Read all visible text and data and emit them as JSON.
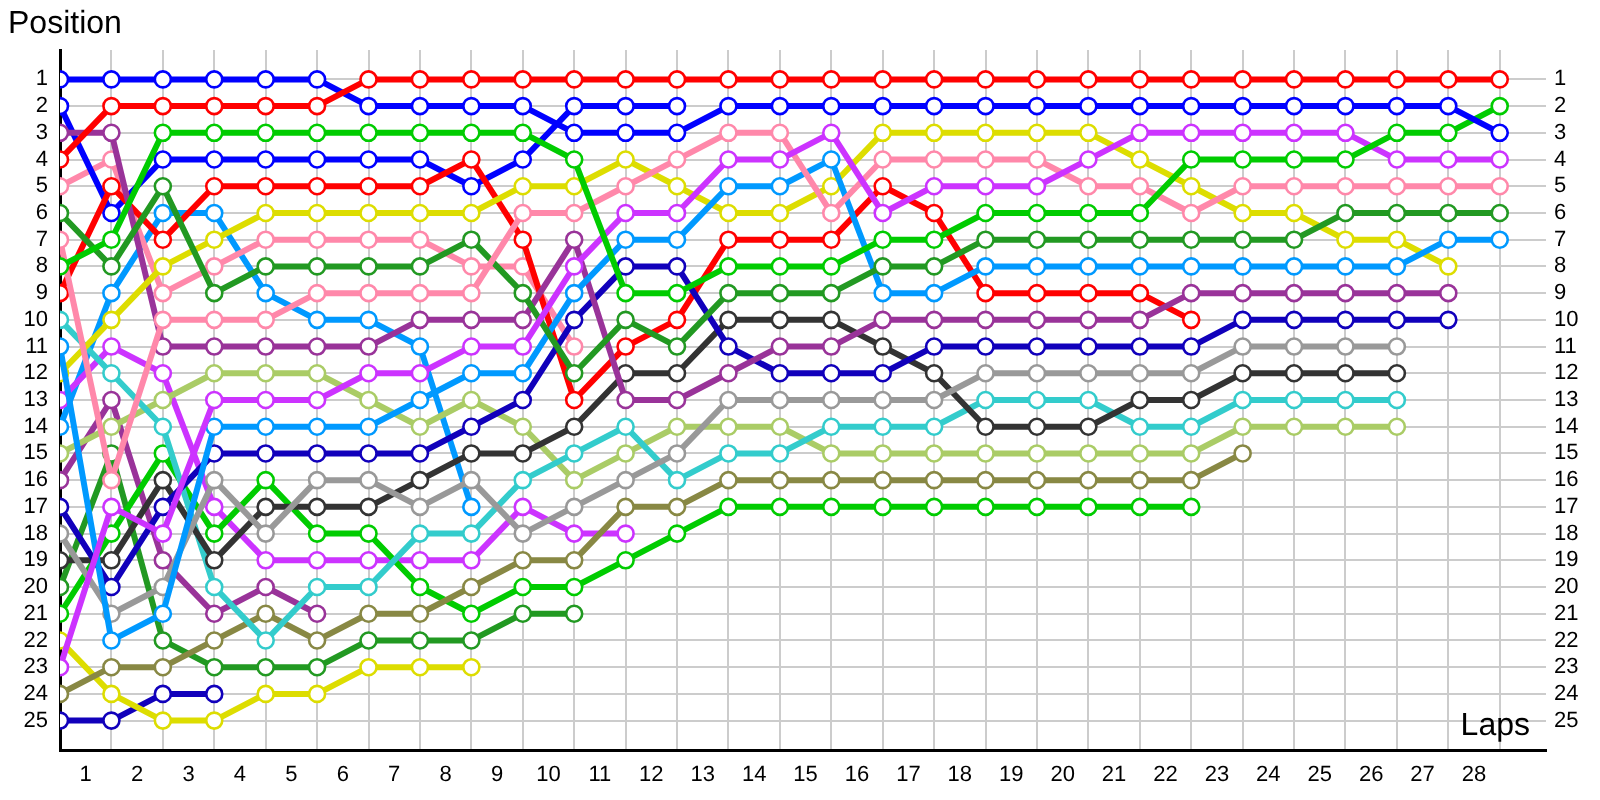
{
  "chart_data": {
    "type": "line",
    "xlabel": "Laps",
    "ylabel": "Position",
    "marker": "circle",
    "grid": true,
    "legend": false,
    "x": [
      0,
      1,
      2,
      3,
      4,
      5,
      6,
      7,
      8,
      9,
      10,
      11,
      12,
      13,
      14,
      15,
      16,
      17,
      18,
      19,
      20,
      21,
      22,
      23,
      24,
      25,
      26,
      27,
      28
    ],
    "xlim": [
      0,
      28.9
    ],
    "xticks": [
      {
        "value": 0,
        "label": null
      },
      {
        "value": 0.5,
        "label": "1"
      },
      {
        "value": 1,
        "label": null
      },
      {
        "value": 1.5,
        "label": "2"
      },
      {
        "value": 2,
        "label": null
      },
      {
        "value": 2.5,
        "label": "3"
      },
      {
        "value": 3,
        "label": null
      },
      {
        "value": 3.5,
        "label": "4"
      },
      {
        "value": 4,
        "label": null
      },
      {
        "value": 4.5,
        "label": "5"
      },
      {
        "value": 5,
        "label": null
      },
      {
        "value": 5.5,
        "label": "6"
      },
      {
        "value": 6,
        "label": null
      },
      {
        "value": 6.5,
        "label": "7"
      },
      {
        "value": 7,
        "label": null
      },
      {
        "value": 7.5,
        "label": "8"
      },
      {
        "value": 8,
        "label": null
      },
      {
        "value": 8.5,
        "label": "9"
      },
      {
        "value": 9,
        "label": null
      },
      {
        "value": 9.5,
        "label": "10"
      },
      {
        "value": 10,
        "label": null
      },
      {
        "value": 10.5,
        "label": "11"
      },
      {
        "value": 11,
        "label": null
      },
      {
        "value": 11.5,
        "label": "12"
      },
      {
        "value": 12,
        "label": null
      },
      {
        "value": 12.5,
        "label": "13"
      },
      {
        "value": 13,
        "label": null
      },
      {
        "value": 13.5,
        "label": "14"
      },
      {
        "value": 14,
        "label": null
      },
      {
        "value": 14.5,
        "label": "15"
      },
      {
        "value": 15,
        "label": null
      },
      {
        "value": 15.5,
        "label": "16"
      },
      {
        "value": 16,
        "label": null
      },
      {
        "value": 16.5,
        "label": "17"
      },
      {
        "value": 17,
        "label": null
      },
      {
        "value": 17.5,
        "label": "18"
      },
      {
        "value": 18,
        "label": null
      },
      {
        "value": 18.5,
        "label": "19"
      },
      {
        "value": 19,
        "label": null
      },
      {
        "value": 19.5,
        "label": "20"
      },
      {
        "value": 20,
        "label": null
      },
      {
        "value": 20.5,
        "label": "21"
      },
      {
        "value": 21,
        "label": null
      },
      {
        "value": 21.5,
        "label": "22"
      },
      {
        "value": 22,
        "label": null
      },
      {
        "value": 22.5,
        "label": "23"
      },
      {
        "value": 23,
        "label": null
      },
      {
        "value": 23.5,
        "label": "24"
      },
      {
        "value": 24,
        "label": null
      },
      {
        "value": 24.5,
        "label": "25"
      },
      {
        "value": 25,
        "label": null
      },
      {
        "value": 25.5,
        "label": "26"
      },
      {
        "value": 26,
        "label": null
      },
      {
        "value": 26.5,
        "label": "27"
      },
      {
        "value": 27,
        "label": null
      },
      {
        "value": 27.5,
        "label": "28"
      },
      {
        "value": 28,
        "label": null
      }
    ],
    "ylim": [
      26.1,
      -0.1
    ],
    "yticks": [
      1,
      2,
      3,
      4,
      5,
      6,
      7,
      8,
      9,
      10,
      11,
      12,
      13,
      14,
      15,
      16,
      17,
      18,
      19,
      20,
      21,
      22,
      23,
      24,
      25
    ],
    "y2lim": [
      26.1,
      -0.1
    ],
    "y2ticks": [
      1,
      2,
      3,
      4,
      5,
      6,
      7,
      8,
      9,
      10,
      11,
      12,
      13,
      14,
      15,
      16,
      17,
      18,
      19,
      20,
      21,
      22,
      23,
      24,
      25
    ],
    "series": [
      {
        "color": "#ff0000",
        "values": [
          4,
          2,
          2,
          2,
          2,
          2,
          1,
          1,
          1,
          1,
          1,
          1,
          1,
          1,
          1,
          1,
          1,
          1,
          1,
          1,
          1,
          1,
          1,
          1,
          1,
          1,
          1,
          1,
          1
        ]
      },
      {
        "color": "#0000ff",
        "values": [
          1,
          1,
          1,
          1,
          1,
          1,
          2,
          2,
          2,
          2,
          3,
          3,
          3,
          2,
          2,
          2,
          2,
          2,
          2,
          2,
          2,
          2,
          2,
          2,
          2,
          2,
          2,
          2,
          3
        ]
      },
      {
        "color": "#00cc00",
        "values": [
          8,
          7,
          3,
          3,
          3,
          3,
          3,
          3,
          3,
          3,
          4,
          9,
          9,
          8,
          8,
          8,
          7,
          7,
          6,
          6,
          6,
          6,
          4,
          4,
          4,
          4,
          3,
          3,
          2
        ]
      },
      {
        "color": "#cc33ff",
        "values": [
          23,
          17,
          18,
          13,
          13,
          13,
          12,
          12,
          11,
          11,
          8,
          6,
          6,
          4,
          4,
          3,
          6,
          5,
          5,
          5,
          4,
          3,
          3,
          3,
          3,
          3,
          4,
          4,
          4
        ]
      },
      {
        "color": "#ff88aa",
        "values": [
          7,
          16,
          10,
          10,
          10,
          9,
          9,
          9,
          9,
          6,
          6,
          5,
          4,
          3,
          3,
          6,
          4,
          4,
          4,
          4,
          5,
          5,
          6,
          5,
          5,
          5,
          5,
          5,
          5
        ]
      },
      {
        "color": "#229922",
        "values": [
          6,
          8,
          5,
          9,
          8,
          8,
          8,
          8,
          7,
          9,
          12,
          10,
          11,
          9,
          9,
          9,
          8,
          8,
          7,
          7,
          7,
          7,
          7,
          7,
          7,
          6,
          6,
          6,
          6
        ]
      },
      {
        "color": "#0099ff",
        "values": [
          11,
          22,
          21,
          14,
          14,
          14,
          14,
          13,
          12,
          12,
          9,
          7,
          7,
          5,
          5,
          4,
          9,
          9,
          8,
          8,
          8,
          8,
          8,
          8,
          8,
          8,
          8,
          7,
          7
        ]
      },
      {
        "color": "#dddd00",
        "values": [
          12,
          10,
          8,
          7,
          6,
          6,
          6,
          6,
          6,
          5,
          5,
          4,
          5,
          6,
          6,
          5,
          3,
          3,
          3,
          3,
          3,
          4,
          5,
          6,
          6,
          7,
          7,
          8,
          null
        ]
      },
      {
        "color": "#993399",
        "values": [
          3,
          3,
          11,
          11,
          11,
          11,
          11,
          10,
          10,
          10,
          7,
          13,
          13,
          12,
          11,
          11,
          10,
          10,
          10,
          10,
          10,
          10,
          9,
          9,
          9,
          9,
          9,
          9,
          null
        ]
      },
      {
        "color": "#1100bb",
        "values": [
          17,
          20,
          17,
          15,
          15,
          15,
          15,
          15,
          14,
          13,
          10,
          8,
          8,
          11,
          12,
          12,
          12,
          11,
          11,
          11,
          11,
          11,
          11,
          10,
          10,
          10,
          10,
          10,
          null
        ]
      },
      {
        "color": "#999999",
        "values": [
          18,
          21,
          20,
          16,
          18,
          16,
          16,
          17,
          16,
          18,
          17,
          16,
          15,
          13,
          13,
          13,
          13,
          13,
          12,
          12,
          12,
          12,
          12,
          11,
          11,
          11,
          11,
          null,
          null
        ]
      },
      {
        "color": "#333333",
        "values": [
          19,
          19,
          16,
          19,
          17,
          17,
          17,
          16,
          15,
          15,
          14,
          12,
          12,
          10,
          10,
          10,
          11,
          12,
          14,
          14,
          14,
          13,
          13,
          12,
          12,
          12,
          12,
          null,
          null
        ]
      },
      {
        "color": "#33cccc",
        "values": [
          10,
          12,
          14,
          20,
          22,
          20,
          20,
          18,
          18,
          16,
          15,
          14,
          16,
          15,
          15,
          14,
          14,
          14,
          13,
          13,
          13,
          14,
          14,
          13,
          13,
          13,
          13,
          null,
          null
        ]
      },
      {
        "color": "#aacc66",
        "values": [
          15,
          14,
          13,
          12,
          12,
          12,
          13,
          14,
          13,
          14,
          16,
          15,
          14,
          14,
          14,
          15,
          15,
          15,
          15,
          15,
          15,
          15,
          15,
          14,
          14,
          14,
          14,
          null,
          null
        ]
      },
      {
        "color": "#888844",
        "values": [
          24,
          23,
          23,
          22,
          21,
          22,
          21,
          21,
          20,
          19,
          19,
          17,
          17,
          16,
          16,
          16,
          16,
          16,
          16,
          16,
          16,
          16,
          16,
          15,
          null,
          null,
          null,
          null,
          null
        ]
      },
      {
        "color": "#00cc00",
        "values": [
          21,
          18,
          15,
          18,
          16,
          18,
          18,
          20,
          21,
          20,
          20,
          19,
          18,
          17,
          17,
          17,
          17,
          17,
          17,
          17,
          17,
          17,
          17,
          null,
          null,
          null,
          null,
          null,
          null
        ]
      },
      {
        "color": "#ff0000",
        "values": [
          9,
          5,
          7,
          5,
          5,
          5,
          5,
          5,
          4,
          7,
          13,
          11,
          10,
          7,
          7,
          7,
          5,
          6,
          9,
          9,
          9,
          9,
          10,
          null,
          null,
          null,
          null,
          null,
          null
        ]
      },
      {
        "color": "#0000ff",
        "values": [
          2,
          6,
          4,
          4,
          4,
          4,
          4,
          4,
          5,
          4,
          2,
          2,
          2,
          null,
          null,
          null,
          null,
          null,
          null,
          null,
          null,
          null,
          null,
          null,
          null,
          null,
          null,
          null,
          null
        ]
      },
      {
        "color": "#cc33ff",
        "values": [
          13,
          11,
          12,
          17,
          19,
          19,
          19,
          19,
          19,
          17,
          18,
          18,
          null,
          null,
          null,
          null,
          null,
          null,
          null,
          null,
          null,
          null,
          null,
          null,
          null,
          null,
          null,
          null,
          null
        ]
      },
      {
        "color": "#ff88aa",
        "values": [
          5,
          4,
          9,
          8,
          7,
          7,
          7,
          7,
          8,
          8,
          11,
          null,
          null,
          null,
          null,
          null,
          null,
          null,
          null,
          null,
          null,
          null,
          null,
          null,
          null,
          null,
          null,
          null,
          null
        ]
      },
      {
        "color": "#229922",
        "values": [
          20,
          15,
          22,
          23,
          23,
          23,
          22,
          22,
          22,
          21,
          21,
          null,
          null,
          null,
          null,
          null,
          null,
          null,
          null,
          null,
          null,
          null,
          null,
          null,
          null,
          null,
          null,
          null,
          null
        ]
      },
      {
        "color": "#0099ff",
        "values": [
          14,
          9,
          6,
          6,
          9,
          10,
          10,
          11,
          17,
          null,
          null,
          null,
          null,
          null,
          null,
          null,
          null,
          null,
          null,
          null,
          null,
          null,
          null,
          null,
          null,
          null,
          null,
          null,
          null
        ]
      },
      {
        "color": "#dddd00",
        "values": [
          22,
          24,
          25,
          25,
          24,
          24,
          23,
          23,
          23,
          null,
          null,
          null,
          null,
          null,
          null,
          null,
          null,
          null,
          null,
          null,
          null,
          null,
          null,
          null,
          null,
          null,
          null,
          null,
          null
        ]
      },
      {
        "color": "#993399",
        "values": [
          16,
          13,
          19,
          21,
          20,
          21,
          null,
          null,
          null,
          null,
          null,
          null,
          null,
          null,
          null,
          null,
          null,
          null,
          null,
          null,
          null,
          null,
          null,
          null,
          null,
          null,
          null,
          null,
          null
        ]
      },
      {
        "color": "#1100bb",
        "values": [
          25,
          25,
          24,
          24,
          null,
          null,
          null,
          null,
          null,
          null,
          null,
          null,
          null,
          null,
          null,
          null,
          null,
          null,
          null,
          null,
          null,
          null,
          null,
          null,
          null,
          null,
          null,
          null,
          null
        ]
      }
    ]
  }
}
